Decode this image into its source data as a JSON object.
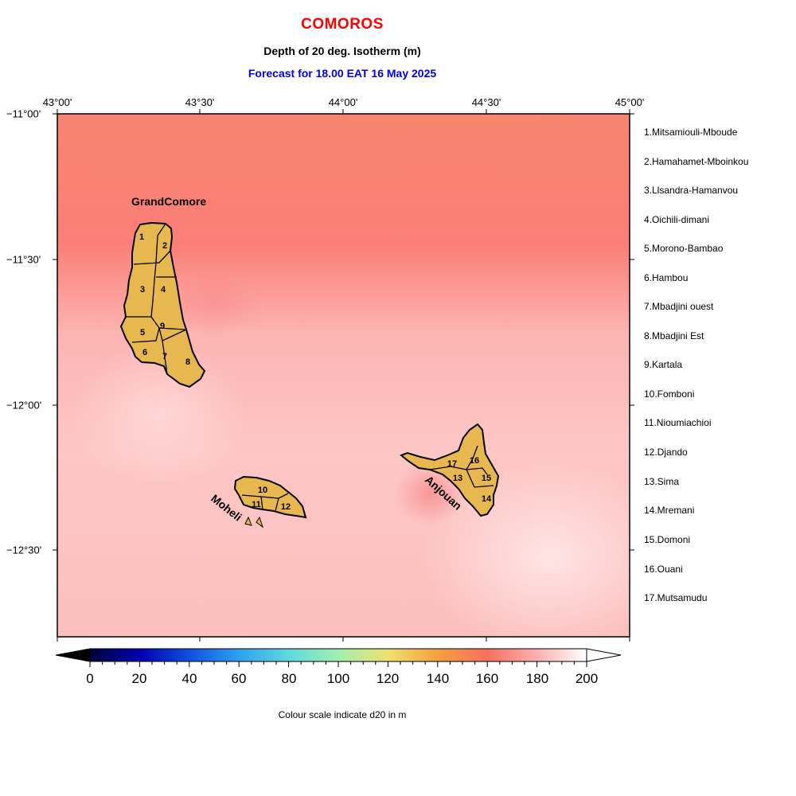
{
  "header": {
    "title": "COMOROS",
    "subtitle": "Depth of 20 deg. Isotherm (m)",
    "forecast": "Forecast for  18.00 EAT 16 May 2025"
  },
  "axes": {
    "longitude_labels": [
      "43°00'",
      "43°30'",
      "44°00'",
      "44°30'",
      "45°00'"
    ],
    "latitude_labels": [
      "−11°00'",
      "−11°30'",
      "−12°00'",
      "−12°30'"
    ]
  },
  "islands": {
    "grand_comore": "GrandComore",
    "moheli": "Moheli",
    "anjouan": "Anjouan"
  },
  "region_numbers": [
    "1",
    "2",
    "3",
    "4",
    "5",
    "6",
    "7",
    "8",
    "9",
    "10",
    "11",
    "12",
    "13",
    "14",
    "15",
    "16",
    "17"
  ],
  "legend": [
    "1.Mitsamiouli-Mboude",
    "2.Hamahamet-Mboinkou",
    "3.Llsandra-Hamanvou",
    "4.Oichili-dimani",
    "5.Morono-Bambao",
    "6.Hambou",
    "7.Mbadjini ouest",
    "8.Mbadjini Est",
    "9.Kartala",
    "10.Fomboni",
    "11.Nioumiachioi",
    "12.Djando",
    "13.Sima",
    "14.Mremani",
    "15.Domoni",
    "16.Ouani",
    "17.Mutsamudu"
  ],
  "colorbar": {
    "ticks": [
      "0",
      "20",
      "40",
      "60",
      "80",
      "100",
      "120",
      "140",
      "160",
      "180",
      "200"
    ],
    "caption": "Colour scale indicate d20 in m",
    "colors": [
      "#00003a",
      "#0000b0",
      "#1050e0",
      "#30a0f0",
      "#60d8e0",
      "#a0f0b0",
      "#f0e070",
      "#f4a040",
      "#f87060",
      "#fcb0b0",
      "#ffffff"
    ]
  },
  "colors": {
    "title": "#ff0000",
    "forecast": "#0000ee",
    "land": "#e8b850"
  }
}
